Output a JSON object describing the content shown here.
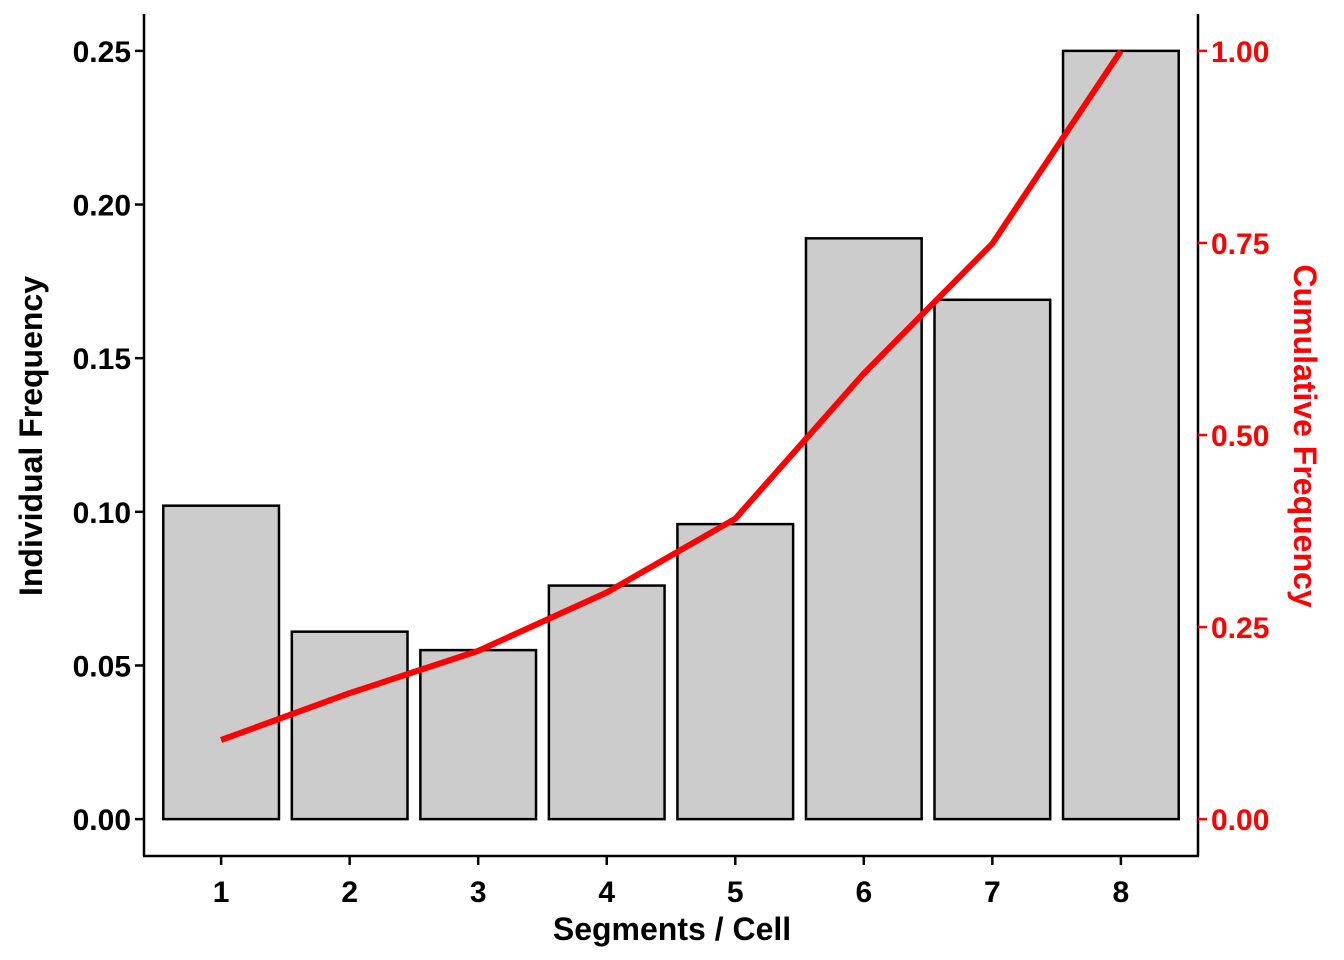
{
  "chart_data": {
    "type": "bar",
    "xlabel": "Segments / Cell",
    "ylabel": "Individual Frequency",
    "ylabel_right": "Cumulative Frequency",
    "categories": [
      "1",
      "2",
      "3",
      "4",
      "5",
      "6",
      "7",
      "8"
    ],
    "series": [
      {
        "type": "bar",
        "axis": "left",
        "values": [
          0.102,
          0.061,
          0.055,
          0.076,
          0.096,
          0.189,
          0.169,
          0.25
        ],
        "color": "#cccccc"
      },
      {
        "type": "line",
        "axis": "right",
        "values": [
          0.103,
          0.164,
          0.219,
          0.295,
          0.391,
          0.58,
          0.749,
          1.0
        ],
        "color": "#ff0000"
      }
    ],
    "ylim": [
      -0.012,
      0.262
    ],
    "ylim_right": [
      -0.048,
      1.048
    ],
    "yticks": [
      "0.00",
      "0.05",
      "0.10",
      "0.15",
      "0.20",
      "0.25"
    ],
    "yticks_right": [
      "0.00",
      "0.25",
      "0.50",
      "0.75",
      "1.00"
    ],
    "grid": false,
    "legend": "none",
    "colors": {
      "bar_fill": "#cccccc",
      "bar_stroke": "#000000",
      "line": "#ff0000",
      "right_axis": "#ff0000",
      "left_axis": "#000000"
    }
  }
}
